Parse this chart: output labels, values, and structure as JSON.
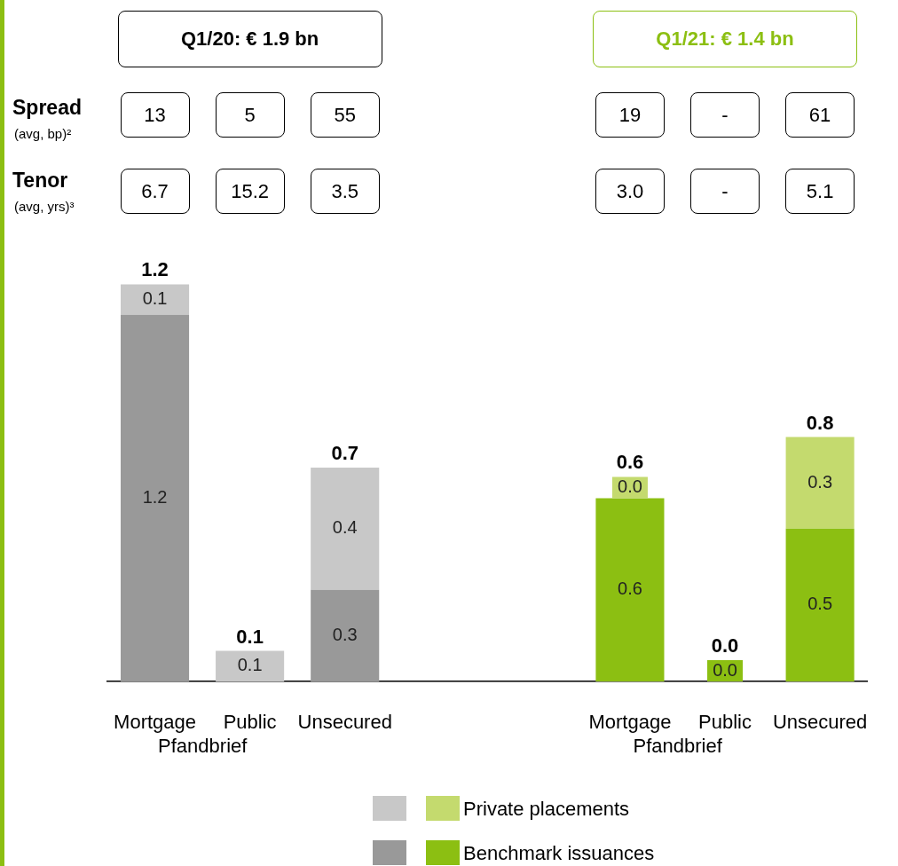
{
  "chart_data": {
    "type": "bar",
    "stacked": true,
    "categories": [
      "Mortgage",
      "Public",
      "Unsecured",
      null,
      null,
      "Mortgage",
      "Public",
      "Unsecured"
    ],
    "series": [
      {
        "name": "Benchmark issuances",
        "colors": [
          "#999999",
          "#999999",
          "#999999",
          "#999999",
          "#8cbf12",
          "#8cbf12",
          "#8cbf12",
          "#8cbf12"
        ],
        "values": [
          1.2,
          null,
          0.3,
          null,
          null,
          0.6,
          0.0,
          0.5
        ],
        "value_labels": [
          "1.2",
          null,
          "0.3",
          null,
          null,
          "0.6",
          "0.0",
          "0.5"
        ]
      },
      {
        "name": "Private placements",
        "colors": [
          "#c8c8c8",
          "#c8c8c8",
          "#c8c8c8",
          "#c8c8c8",
          "#c4da6e",
          "#c4da6e",
          "#c4da6e",
          "#c4da6e"
        ],
        "values": [
          0.1,
          0.1,
          0.4,
          null,
          null,
          0.0,
          null,
          0.3
        ],
        "value_labels": [
          "0.1",
          "0.1",
          "0.4",
          null,
          null,
          "0.0",
          null,
          "0.3"
        ]
      }
    ],
    "totals": [
      "1.2",
      "0.1",
      "0.7",
      null,
      null,
      "0.6",
      "0.0",
      "0.8"
    ],
    "tick_labels": "x",
    "grid": false,
    "legend": "bottom",
    "annotations": [
      "Q1/20: € 1.9 bn",
      "Q1/21: € 1.4 bn",
      "Spread",
      "(avg, bp)²",
      "Tenor",
      "(avg, yrs)³",
      "13",
      "5",
      "55",
      "19",
      "-",
      "61",
      "6.7",
      "15.2",
      "3.5",
      "3.0",
      "-",
      "5.1",
      "Pfandbrief",
      "Pfandbrief"
    ]
  }
}
